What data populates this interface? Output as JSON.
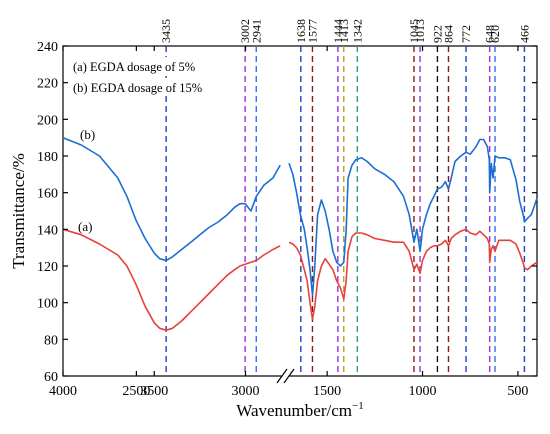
{
  "chart_data": {
    "type": "line",
    "xlabel": "Wavenumber/cm",
    "xlabel_sup": "−1",
    "ylabel": "Transmittance/%",
    "xlim": [
      4000,
      400
    ],
    "ylim": [
      60,
      240
    ],
    "axis_break_at": 2800,
    "x_ticks": [
      "4000",
      "3500",
      "3000",
      "2500",
      "1500",
      "1000",
      "500"
    ],
    "y_ticks": [
      "60",
      "80",
      "100",
      "120",
      "140",
      "160",
      "180",
      "200",
      "220",
      "240"
    ],
    "legend_lines": [
      "(a) EGDA dosage of 5%",
      "(b) EGDA dosage of 15%"
    ],
    "peak_lines": [
      {
        "label": "3435",
        "x": 3435,
        "color": "#1f3fbf"
      },
      {
        "label": "3002",
        "x": 3002,
        "color": "#9b30d9"
      },
      {
        "label": "2941",
        "x": 2941,
        "color": "#3a6cf0"
      },
      {
        "label": "1638",
        "x": 1638,
        "color": "#1f3fbf"
      },
      {
        "label": "1577",
        "x": 1577,
        "color": "#8b1a1a"
      },
      {
        "label": "1444",
        "x": 1444,
        "color": "#9b30d9"
      },
      {
        "label": "1413",
        "x": 1413,
        "color": "#b8a020"
      },
      {
        "label": "1342",
        "x": 1342,
        "color": "#2a9d8f"
      },
      {
        "label": "1045",
        "x": 1045,
        "color": "#8b1a1a"
      },
      {
        "label": "1013",
        "x": 1013,
        "color": "#9b30d9"
      },
      {
        "label": "922",
        "x": 922,
        "color": "#111111"
      },
      {
        "label": "864",
        "x": 864,
        "color": "#8b1a1a"
      },
      {
        "label": "772",
        "x": 772,
        "color": "#1f3fbf"
      },
      {
        "label": "648",
        "x": 648,
        "color": "#9b30d9"
      },
      {
        "label": "620",
        "x": 620,
        "color": "#3a6cf0"
      },
      {
        "label": "466",
        "x": 466,
        "color": "#1f3fbf"
      }
    ],
    "series": [
      {
        "label": "(a)",
        "color": "#e8403a",
        "x": [
          4000,
          3900,
          3800,
          3700,
          3650,
          3600,
          3550,
          3500,
          3470,
          3435,
          3400,
          3350,
          3300,
          3250,
          3200,
          3150,
          3100,
          3060,
          3030,
          3002,
          2970,
          2941,
          2900,
          2850,
          2810,
          1700,
          1680,
          1660,
          1640,
          1620,
          1605,
          1590,
          1577,
          1565,
          1550,
          1530,
          1510,
          1490,
          1470,
          1450,
          1430,
          1413,
          1400,
          1390,
          1370,
          1350,
          1320,
          1290,
          1250,
          1200,
          1150,
          1100,
          1070,
          1045,
          1030,
          1013,
          1000,
          980,
          960,
          940,
          922,
          900,
          880,
          864,
          850,
          830,
          800,
          772,
          750,
          720,
          700,
          680,
          660,
          650,
          648,
          640,
          630,
          620,
          600,
          570,
          540,
          510,
          490,
          470,
          466,
          450,
          430,
          400
        ],
        "y": [
          140,
          137,
          132,
          126,
          120,
          110,
          98,
          89,
          86,
          85,
          86,
          90,
          95,
          100,
          105,
          110,
          115,
          118,
          120,
          121,
          122,
          123,
          126,
          129,
          131,
          133,
          132,
          130,
          126,
          118,
          112,
          100,
          91,
          98,
          112,
          120,
          124,
          121,
          118,
          112,
          108,
          102,
          112,
          128,
          136,
          138,
          138,
          137,
          135,
          134,
          133,
          133,
          128,
          118,
          121,
          116,
          123,
          128,
          130,
          131,
          131,
          132,
          134,
          131,
          135,
          137,
          139,
          140,
          138,
          137,
          139,
          137,
          135,
          132,
          122,
          129,
          131,
          128,
          134,
          134,
          134,
          132,
          127,
          121,
          119,
          118,
          120,
          122
        ]
      },
      {
        "label": "(b)",
        "color": "#1a6fd4",
        "x": [
          4000,
          3900,
          3800,
          3700,
          3650,
          3600,
          3550,
          3500,
          3470,
          3435,
          3400,
          3350,
          3300,
          3250,
          3200,
          3150,
          3100,
          3060,
          3030,
          3002,
          2970,
          2941,
          2900,
          2850,
          2810,
          1700,
          1680,
          1660,
          1640,
          1620,
          1605,
          1590,
          1577,
          1565,
          1550,
          1530,
          1510,
          1490,
          1470,
          1450,
          1430,
          1413,
          1400,
          1390,
          1370,
          1350,
          1320,
          1290,
          1250,
          1200,
          1150,
          1100,
          1070,
          1045,
          1030,
          1013,
          1000,
          980,
          960,
          940,
          922,
          900,
          880,
          864,
          850,
          830,
          800,
          772,
          750,
          720,
          700,
          680,
          660,
          650,
          648,
          640,
          630,
          620,
          600,
          570,
          540,
          510,
          490,
          470,
          466,
          450,
          430,
          400
        ],
        "y": [
          190,
          186,
          180,
          168,
          158,
          145,
          135,
          127,
          124,
          123,
          125,
          129,
          133,
          137,
          141,
          144,
          148,
          152,
          154,
          154,
          150,
          158,
          164,
          168,
          175,
          176,
          170,
          160,
          148,
          140,
          130,
          118,
          104,
          120,
          148,
          156,
          150,
          140,
          128,
          122,
          120,
          122,
          140,
          168,
          175,
          178,
          179,
          177,
          173,
          170,
          166,
          158,
          148,
          133,
          140,
          128,
          140,
          148,
          154,
          158,
          162,
          163,
          166,
          162,
          168,
          177,
          180,
          182,
          181,
          185,
          189,
          189,
          185,
          178,
          160,
          176,
          168,
          180,
          179,
          179,
          178,
          167,
          155,
          147,
          144,
          146,
          148,
          157
        ]
      }
    ]
  }
}
